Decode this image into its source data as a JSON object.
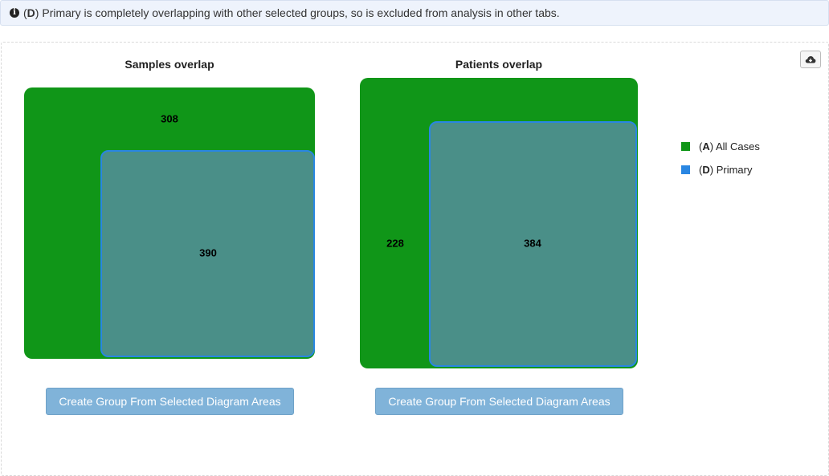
{
  "alert": {
    "icon": "info-circle-icon",
    "group_prefix": "(",
    "group_letter": "D",
    "group_suffix": ")",
    "message": " Primary is completely overlapping with other selected groups, so is excluded from analysis in other tabs."
  },
  "toolbar": {
    "download_icon": "cloud-download-icon"
  },
  "samples": {
    "title": "Samples overlap",
    "only_a_count": "308",
    "both_count": "390",
    "button_label": "Create Group From Selected Diagram Areas"
  },
  "patients": {
    "title": "Patients overlap",
    "only_a_count": "228",
    "both_count": "384",
    "button_label": "Create Group From Selected Diagram Areas"
  },
  "legend": {
    "items": [
      {
        "letter": "A",
        "name": "All Cases",
        "color": "#109618"
      },
      {
        "letter": "D",
        "name": "Primary",
        "color": "#2986e2"
      }
    ]
  },
  "colors": {
    "group_a": "#109618",
    "group_d": "#2986e2",
    "button": "#80b3d9"
  }
}
